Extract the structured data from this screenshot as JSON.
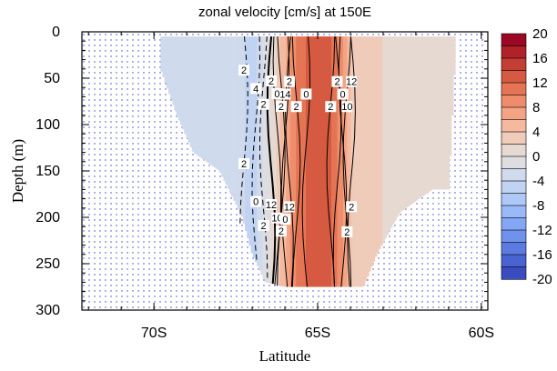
{
  "chart_data": {
    "type": "heatmap",
    "subtype": "filled-contour",
    "title": "zonal velocity [cm/s] at 150E",
    "xlabel": "Latitude",
    "ylabel": "Depth (m)",
    "xlim": [
      -72.2,
      -59.8
    ],
    "ylim": [
      0,
      300
    ],
    "y_reversed": true,
    "x_ticks": [
      -70,
      -65,
      -60
    ],
    "x_tick_labels": [
      "70S",
      "65S",
      "60S"
    ],
    "y_ticks": [
      0,
      50,
      100,
      150,
      200,
      250,
      300
    ],
    "y_tick_labels": [
      "0",
      "50",
      "100",
      "150",
      "200",
      "250",
      "300"
    ],
    "missing_value_pattern": "dotted (land/bathymetry)",
    "colorbar": {
      "orientation": "vertical",
      "levels": [
        -20,
        -18,
        -16,
        -14,
        -12,
        -10,
        -8,
        -6,
        -4,
        -2,
        0,
        2,
        4,
        6,
        8,
        10,
        12,
        14,
        16,
        18,
        20
      ],
      "tick_labels": [
        "20",
        "16",
        "12",
        "8",
        "4",
        "0",
        "-4",
        "-8",
        "-12",
        "-16",
        "-20"
      ],
      "colors": [
        "#3b4cc0",
        "#4a63d3",
        "#5b7be0",
        "#6f92ed",
        "#84a7f5",
        "#9ab9f9",
        "#aec8f8",
        "#c0d3f3",
        "#cfdaec",
        "#dddde2",
        "#e6d9d2",
        "#efcbb9",
        "#f4b99f",
        "#f4a485",
        "#ee8d6b",
        "#e47454",
        "#d65a41",
        "#c43e33",
        "#b02128",
        "#9b0824"
      ]
    },
    "contour_labels": [
      "2",
      "4",
      "2",
      "2",
      "0",
      "2",
      "12",
      "14",
      "10",
      "2",
      "0",
      "2",
      "2",
      "0",
      "2",
      "2",
      "0",
      "2",
      "12",
      "10",
      "2",
      "2",
      "0",
      "2",
      "12"
    ],
    "field_profile": {
      "note": "approximate zonal velocity (cm/s) by latitude; roughly depth-uniform",
      "lat": [
        -69.8,
        -68.5,
        -67.5,
        -67.0,
        -66.3,
        -65.8,
        -65.2,
        -64.7,
        -64.3,
        -63.9,
        -63.0,
        -62.0,
        -61.0
      ],
      "u": [
        -3,
        -2,
        -3,
        -5,
        1,
        9,
        13,
        13,
        9,
        3,
        2,
        1,
        0
      ]
    },
    "valid_region": {
      "note": "data domain (non-dotted) by latitude: depth range in meters",
      "lat": [
        -69.8,
        -69.3,
        -68.8,
        -68.0,
        -67.3,
        -67.0,
        -66.6,
        -66.0,
        -63.6,
        -63.2,
        -62.5,
        -61.5,
        -61.0,
        -60.8
      ],
      "top": [
        5,
        5,
        5,
        5,
        5,
        5,
        5,
        5,
        5,
        5,
        5,
        5,
        5,
        5
      ],
      "bottom": [
        40,
        90,
        130,
        150,
        200,
        240,
        270,
        275,
        275,
        240,
        195,
        170,
        170,
        25
      ]
    }
  }
}
